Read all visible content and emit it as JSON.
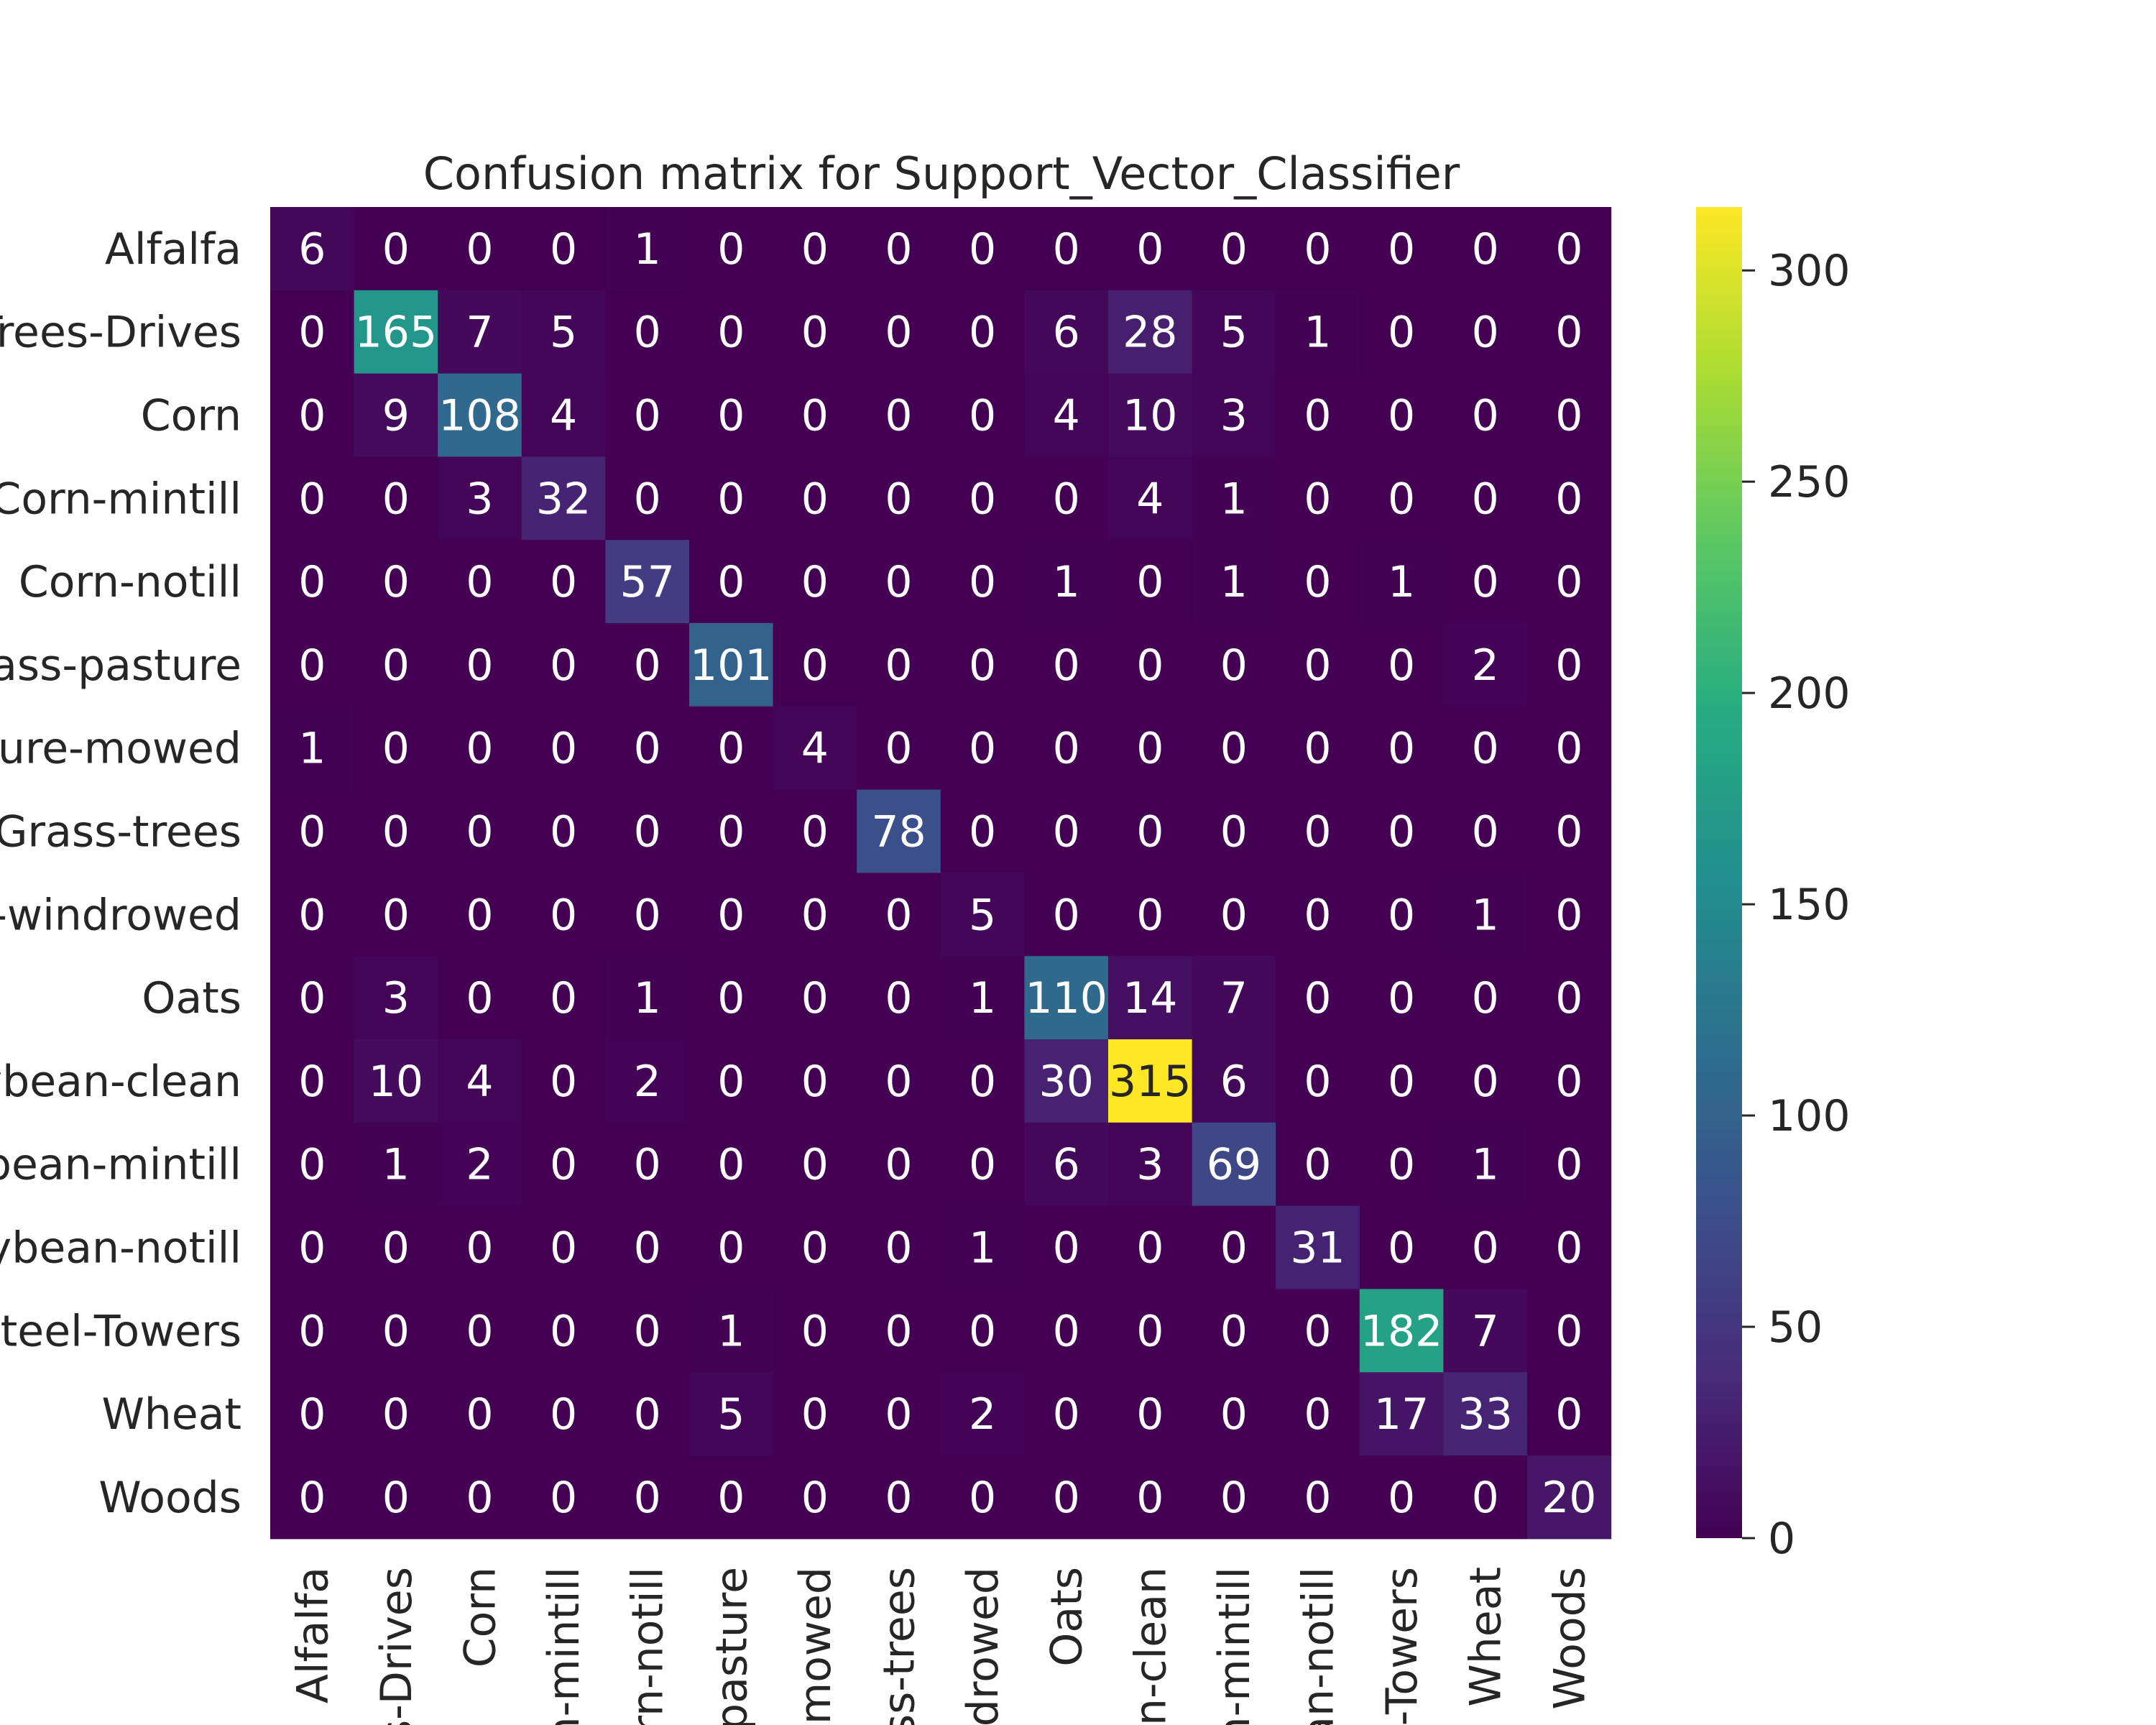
{
  "chart_data": {
    "type": "heatmap",
    "title": "Confusion matrix for Support_Vector_Classifier",
    "row_labels": [
      "Alfalfa",
      "Trees-Drives",
      "Corn",
      "Corn-mintill",
      "Corn-notill",
      "ass-pasture",
      "ture-mowed",
      "Grass-trees",
      "-windrowed",
      "Oats",
      "ybean-clean",
      "ybean-mintill",
      "ybean-notill",
      "teel-Towers",
      "Wheat",
      "Woods"
    ],
    "col_labels": [
      "Alfalfa",
      "s-Drives",
      "Corn",
      "n-mintill",
      "orn-notill",
      "-pasture",
      "-mowed",
      "ss-trees",
      "ndrowed",
      "Oats",
      "n-clean",
      "n-mintill",
      "an-notill",
      "-Towers",
      "Wheat",
      "Woods"
    ],
    "matrix": [
      [
        6,
        0,
        0,
        0,
        1,
        0,
        0,
        0,
        0,
        0,
        0,
        0,
        0,
        0,
        0,
        0
      ],
      [
        0,
        165,
        7,
        5,
        0,
        0,
        0,
        0,
        0,
        6,
        28,
        5,
        1,
        0,
        0,
        0
      ],
      [
        0,
        9,
        108,
        4,
        0,
        0,
        0,
        0,
        0,
        4,
        10,
        3,
        0,
        0,
        0,
        0
      ],
      [
        0,
        0,
        3,
        32,
        0,
        0,
        0,
        0,
        0,
        0,
        4,
        1,
        0,
        0,
        0,
        0
      ],
      [
        0,
        0,
        0,
        0,
        57,
        0,
        0,
        0,
        0,
        1,
        0,
        1,
        0,
        1,
        0,
        0
      ],
      [
        0,
        0,
        0,
        0,
        0,
        101,
        0,
        0,
        0,
        0,
        0,
        0,
        0,
        0,
        2,
        0
      ],
      [
        1,
        0,
        0,
        0,
        0,
        0,
        4,
        0,
        0,
        0,
        0,
        0,
        0,
        0,
        0,
        0
      ],
      [
        0,
        0,
        0,
        0,
        0,
        0,
        0,
        78,
        0,
        0,
        0,
        0,
        0,
        0,
        0,
        0
      ],
      [
        0,
        0,
        0,
        0,
        0,
        0,
        0,
        0,
        5,
        0,
        0,
        0,
        0,
        0,
        1,
        0
      ],
      [
        0,
        3,
        0,
        0,
        1,
        0,
        0,
        0,
        1,
        110,
        14,
        7,
        0,
        0,
        0,
        0
      ],
      [
        0,
        10,
        4,
        0,
        2,
        0,
        0,
        0,
        0,
        30,
        315,
        6,
        0,
        0,
        0,
        0
      ],
      [
        0,
        1,
        2,
        0,
        0,
        0,
        0,
        0,
        0,
        6,
        3,
        69,
        0,
        0,
        1,
        0
      ],
      [
        0,
        0,
        0,
        0,
        0,
        0,
        0,
        0,
        1,
        0,
        0,
        0,
        31,
        0,
        0,
        0
      ],
      [
        0,
        0,
        0,
        0,
        0,
        1,
        0,
        0,
        0,
        0,
        0,
        0,
        0,
        182,
        7,
        0
      ],
      [
        0,
        0,
        0,
        0,
        0,
        5,
        0,
        0,
        2,
        0,
        0,
        0,
        0,
        17,
        33,
        0
      ],
      [
        0,
        0,
        0,
        0,
        0,
        0,
        0,
        0,
        0,
        0,
        0,
        0,
        0,
        0,
        0,
        20
      ]
    ],
    "colormap": "viridis",
    "value_range": [
      0,
      315
    ],
    "colorbar_ticks": [
      0,
      50,
      100,
      150,
      200,
      250,
      300
    ],
    "colorbar_tick_labels": [
      "0",
      "50",
      "100",
      "150",
      "200",
      "250",
      "300"
    ],
    "colorbar_position": "right",
    "grid": false
  }
}
